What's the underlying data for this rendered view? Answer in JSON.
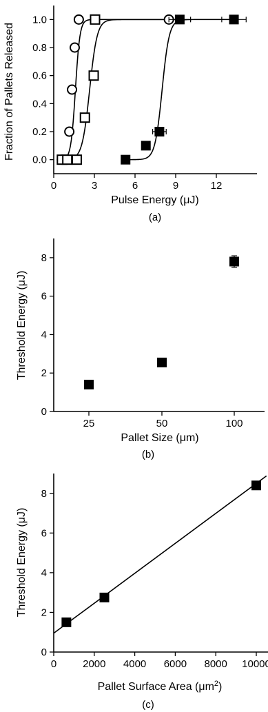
{
  "chart_data": [
    {
      "panel": "(a)",
      "type": "scatter",
      "xlabel": "Pulse Energy (μJ)",
      "ylabel": "Fraction of Pallets Released",
      "xlim": [
        0,
        15
      ],
      "ylim": [
        -0.1,
        1.1
      ],
      "xticks": [
        "0",
        "3",
        "6",
        "9",
        "12"
      ],
      "yticks": [
        "0.0",
        "0.2",
        "0.4",
        "0.6",
        "0.8",
        "1.0"
      ],
      "series": [
        {
          "marker": "open-circle",
          "x": [
            0.6,
            1.0,
            1.15,
            1.35,
            1.55,
            1.85,
            8.5
          ],
          "y": [
            0.0,
            0.0,
            0.2,
            0.5,
            0.8,
            1.0,
            1.0
          ],
          "fit": {
            "x0": 1.6,
            "k": 6.0
          }
        },
        {
          "marker": "open-square",
          "x": [
            0.6,
            1.0,
            1.7,
            2.3,
            2.95,
            3.05
          ],
          "y": [
            0.0,
            0.0,
            0.0,
            0.3,
            0.6,
            1.0
          ],
          "fit": {
            "x0": 2.65,
            "k": 3.6
          }
        },
        {
          "marker": "filled-square",
          "x": [
            5.3,
            6.8,
            7.8,
            9.3,
            13.3
          ],
          "y": [
            0.0,
            0.1,
            0.2,
            1.0,
            1.0
          ],
          "xerr": [
            0,
            0,
            0.5,
            0.8,
            0.9
          ],
          "fit": {
            "x0": 8.0,
            "k": 3.8
          }
        }
      ]
    },
    {
      "panel": "(b)",
      "type": "scatter",
      "xlabel": "Pallet Size (μm)",
      "ylabel": "Threshold Energy (μJ)",
      "ylim": [
        0,
        9
      ],
      "categories": [
        "25",
        "50",
        "100"
      ],
      "yticks": [
        "0",
        "2",
        "4",
        "6",
        "8"
      ],
      "series": [
        {
          "marker": "filled-square",
          "values": [
            1.4,
            2.55,
            7.8
          ],
          "yerr": [
            0.15,
            0.2,
            0.3
          ]
        }
      ]
    },
    {
      "panel": "(c)",
      "type": "scatter",
      "xlabel_main": "Pallet Surface Area (μm",
      "xlabel_sup": "2",
      "xlabel_end": ")",
      "ylabel": "Threshold Energy (μJ)",
      "xlim": [
        0,
        10500
      ],
      "ylim": [
        0,
        9
      ],
      "xticks": [
        "0",
        "2000",
        "4000",
        "6000",
        "8000",
        "10000"
      ],
      "yticks": [
        "0",
        "2",
        "4",
        "6",
        "8"
      ],
      "series": [
        {
          "marker": "filled-square",
          "x": [
            625,
            2500,
            10000
          ],
          "y": [
            1.5,
            2.75,
            8.4
          ],
          "yerr": [
            0.12,
            0.2,
            0.15
          ]
        }
      ],
      "fit_line": {
        "slope": 0.000755,
        "intercept": 0.95
      }
    }
  ]
}
